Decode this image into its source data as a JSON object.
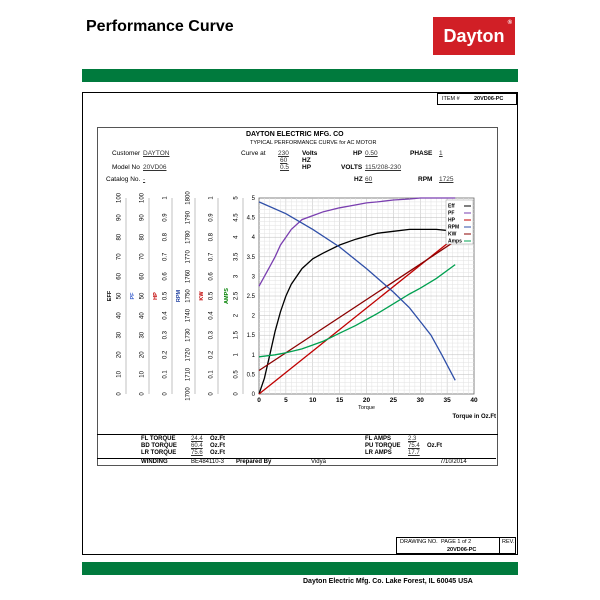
{
  "page_title": "Performance Curve",
  "logo_text": "Dayton",
  "item_label": "ITEM #",
  "item_value": "20VD06-PC",
  "company": "DAYTON ELECTRIC MFG. CO",
  "subtitle": "TYPICAL PERFORMANCE CURVE for AC MOTOR",
  "fields": {
    "customer_label": "Customer",
    "customer_value": "DAYTON",
    "curve_label": "Curve at",
    "volts_value": "230",
    "volts_label": "Volts",
    "hz_value": "60",
    "hz_label": "HZ",
    "hp_num": "0.5",
    "hp_unit": "HP",
    "hp_label": "HP",
    "hp_value": "0.50",
    "phase_label": "PHASE",
    "phase_value": "1",
    "model_label": "Model No",
    "model_value": "20VD06",
    "volts2_label": "VOLTS",
    "volts2_value": "115/208-230",
    "catalog_label": "Catalog No.",
    "catalog_value": "-",
    "hz2_label": "HZ",
    "hz2_value": "60",
    "rpm_label": "RPM",
    "rpm_value": "1725"
  },
  "info": {
    "fl_torque_label": "FL TORQUE",
    "fl_torque_value": "24.4",
    "fl_torque_unit": "Oz.Ft",
    "bd_torque_label": "BD TORQUE",
    "bd_torque_value": "60.4",
    "bd_torque_unit": "Oz.Ft",
    "lr_torque_label": "LR TORQUE",
    "lr_torque_value": "75.6",
    "lr_torque_unit": "Oz.Ft",
    "fl_amps_label": "FL AMPS",
    "fl_amps_value": "2.3",
    "pu_torque_label": "PU TORQUE",
    "pu_torque_value": "75.4",
    "pu_torque_unit": "Oz.Ft",
    "lr_amps_label": "LR AMPS",
    "lr_amps_value": "17.7",
    "winding_label": "WINDING",
    "winding_value": "BE484110-3",
    "prepared_label": "Prepared By",
    "prepared_value": "Vidya",
    "date_value": "7/10/2014"
  },
  "drawing": {
    "drawing_label": "DRAWING NO.",
    "page_text": "PAGE 1 of 2",
    "drawing_value": "20VD06-PC",
    "rev_label": "REV."
  },
  "footer": "Dayton Electric Mfg. Co.  Lake Forest, IL  60045  USA",
  "colors": {
    "logo": "#d11f26",
    "bar": "#007a3d"
  },
  "chart_data": {
    "type": "line",
    "xlabel": "Torque",
    "xlabel2": "Torque in Oz.Ft",
    "xlim": [
      0,
      40
    ],
    "xticks": [
      "0",
      "5",
      "10",
      "15",
      "20",
      "25",
      "30",
      "35",
      "40"
    ],
    "amps_ticks": [
      "0",
      "0.5",
      "1",
      "1.5",
      "2",
      "2.5",
      "3",
      "3.5",
      "4",
      "4.5",
      "5"
    ],
    "ylim_amps": [
      0,
      5
    ],
    "left_axes": [
      {
        "label": "EFF",
        "color": "#000000",
        "ticks": [
          "0",
          "10",
          "20",
          "30",
          "40",
          "50",
          "60",
          "70",
          "80",
          "90",
          "100"
        ]
      },
      {
        "label": "PF",
        "color": "#3a5fcd",
        "ticks": [
          "0",
          "10",
          "20",
          "30",
          "40",
          "50",
          "60",
          "70",
          "80",
          "90",
          "100"
        ]
      },
      {
        "label": "HP",
        "color": "#c00000",
        "ticks": [
          "0",
          "0.1",
          "0.2",
          "0.3",
          "0.4",
          "0.5",
          "0.6",
          "0.7",
          "0.8",
          "0.9",
          "1"
        ]
      },
      {
        "label": "RPM",
        "color": "#1f3f9f",
        "ticks": [
          "1700",
          "1710",
          "1720",
          "1730",
          "1740",
          "1750",
          "1760",
          "1770",
          "1780",
          "1790",
          "1800"
        ]
      },
      {
        "label": "KW",
        "color": "#c00000",
        "ticks": [
          "0",
          "0.1",
          "0.2",
          "0.3",
          "0.4",
          "0.5",
          "0.6",
          "0.7",
          "0.8",
          "0.9",
          "1"
        ]
      },
      {
        "label": "AMPS",
        "color": "#008000",
        "ticks": [
          "0",
          "0.5",
          "1",
          "1.5",
          "2",
          "2.5",
          "3",
          "3.5",
          "4",
          "4.5",
          "5"
        ]
      }
    ],
    "legend": [
      "Eff",
      "PF",
      "HP",
      "RPM",
      "KW",
      "Amps"
    ],
    "series": [
      {
        "name": "Eff",
        "color": "#000000",
        "x": [
          0,
          1,
          2,
          3,
          4,
          5,
          6,
          8,
          10,
          12,
          15,
          18,
          20,
          22,
          25,
          28,
          30,
          33,
          36.5
        ],
        "y": [
          0,
          8,
          20,
          32,
          42,
          50,
          56,
          64,
          69,
          72,
          76,
          79,
          80.5,
          82,
          83,
          84,
          84,
          84,
          83
        ]
      },
      {
        "name": "PF",
        "color": "#7a3fb0",
        "x": [
          0,
          1,
          2,
          3,
          4,
          5,
          6,
          8,
          10,
          12,
          15,
          18,
          20,
          22,
          25,
          28,
          30,
          33,
          36.5
        ],
        "y": [
          55,
          60,
          65,
          70,
          76,
          80,
          84,
          89,
          91,
          93,
          95,
          96.5,
          97.5,
          98,
          99,
          99.5,
          100,
          100,
          100
        ]
      },
      {
        "name": "HP",
        "color": "#c00000",
        "x": [
          0,
          36.5
        ],
        "y": [
          0,
          0.8
        ]
      },
      {
        "name": "KW",
        "color": "#8b0000",
        "x": [
          0,
          36.5
        ],
        "y": [
          0.12,
          0.78
        ]
      },
      {
        "name": "Amps",
        "color": "#00a050",
        "x": [
          0,
          3,
          5,
          8,
          10,
          12,
          15,
          18,
          20,
          22,
          25,
          28,
          30,
          33,
          36.5
        ],
        "y": [
          0.95,
          1.0,
          1.05,
          1.15,
          1.25,
          1.35,
          1.55,
          1.75,
          1.9,
          2.05,
          2.3,
          2.55,
          2.7,
          2.95,
          3.3
        ]
      },
      {
        "name": "RPM",
        "color": "#2f4fa8",
        "x": [
          0,
          5,
          10,
          15,
          20,
          25,
          28,
          30,
          32,
          34,
          36.5
        ],
        "y": [
          1798,
          1792,
          1784,
          1775,
          1764,
          1752,
          1744,
          1737,
          1730,
          1720,
          1707
        ]
      }
    ]
  }
}
